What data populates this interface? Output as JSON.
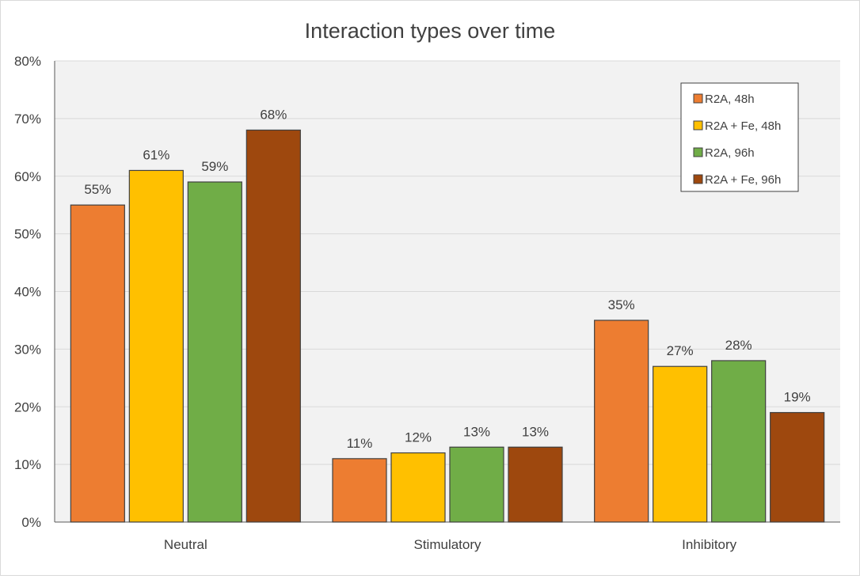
{
  "chart_data": {
    "type": "bar",
    "title": "Interaction types over time",
    "xlabel": "",
    "ylabel": "",
    "categories": [
      "Neutral",
      "Stimulatory",
      "Inhibitory"
    ],
    "series": [
      {
        "name": "R2A, 48h",
        "values": [
          55,
          11,
          35
        ],
        "labels": [
          "55%",
          "11%",
          "35%"
        ],
        "color": "#ED7D31"
      },
      {
        "name": "R2A + Fe, 48h",
        "values": [
          61,
          12,
          27
        ],
        "labels": [
          "61%",
          "12%",
          "27%"
        ],
        "color": "#FFC000"
      },
      {
        "name": "R2A, 96h",
        "values": [
          59,
          13,
          28
        ],
        "labels": [
          "59%",
          "13%",
          "28%"
        ],
        "color": "#70AD47"
      },
      {
        "name": "R2A + Fe, 96h",
        "values": [
          68,
          13,
          19
        ],
        "labels": [
          "68%",
          "13%",
          "19%"
        ],
        "color": "#9E480E"
      }
    ],
    "ylim": [
      0,
      80
    ],
    "yticks": [
      "0%",
      "10%",
      "20%",
      "30%",
      "40%",
      "50%",
      "60%",
      "70%",
      "80%"
    ],
    "grid": true,
    "legend_position": "top-right",
    "plot_background": "#F2F2F2"
  }
}
